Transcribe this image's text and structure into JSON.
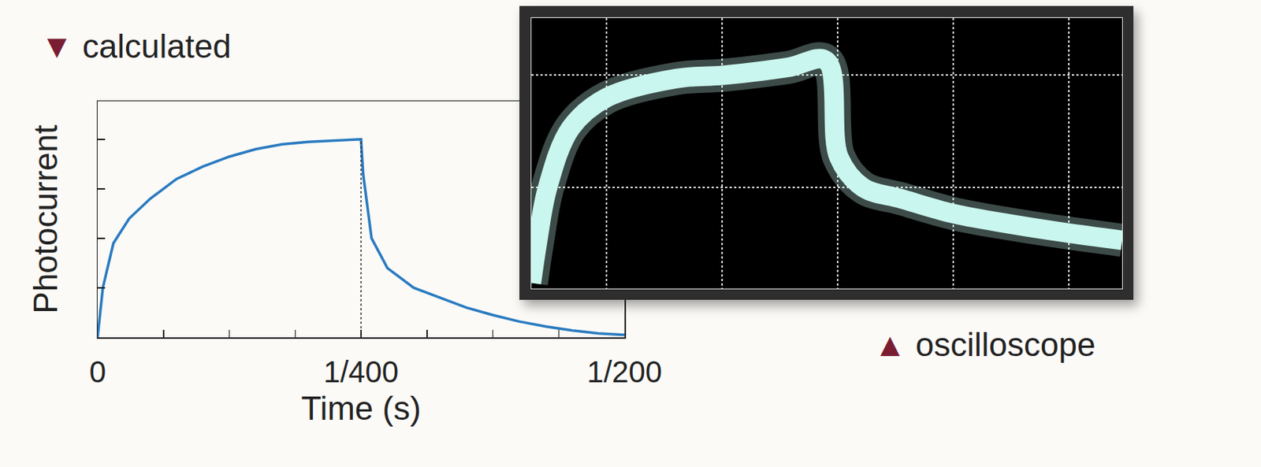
{
  "chart_data": [
    {
      "type": "line",
      "title": "▼ calculated",
      "x_label": "Time (s)",
      "y_label": "Photocurrent",
      "x": [
        0,
        5e-05,
        0.00015,
        0.0003,
        0.0005,
        0.00075,
        0.001,
        0.00125,
        0.0015,
        0.00175,
        0.002,
        0.00225,
        0.0025,
        0.00252,
        0.0026,
        0.00275,
        0.003,
        0.00325,
        0.0035,
        0.00375,
        0.004,
        0.00425,
        0.0045,
        0.00475,
        0.005
      ],
      "values": [
        0,
        1.0,
        1.9,
        2.4,
        2.8,
        3.2,
        3.45,
        3.65,
        3.8,
        3.9,
        3.95,
        3.98,
        4.0,
        3.3,
        2.0,
        1.4,
        1.0,
        0.8,
        0.6,
        0.45,
        0.32,
        0.22,
        0.14,
        0.08,
        0.05
      ],
      "color": "#2a7bc0",
      "xlim": [
        0,
        0.005
      ],
      "xticks": [
        0,
        {
          "value": 0.0025,
          "label": "1/400"
        },
        {
          "value": 0.005,
          "label": "1/200"
        }
      ],
      "ylim": [
        0,
        4.77
      ],
      "yticks": [
        0,
        1,
        2,
        3,
        4
      ],
      "tick_labels": "x",
      "grid": false
    },
    {
      "type": "line",
      "title": "▲ oscilloscope",
      "x": [
        0.35,
        0.4,
        0.49,
        0.69,
        1.0,
        1.6,
        2.01,
        2.57,
        2.9,
        3.01,
        3.22,
        3.55,
        3.99,
        4.52,
        4.96,
        5.46
      ],
      "values": [
        -0.85,
        -0.5,
        0,
        0.53,
        0.8,
        0.97,
        1.0,
        1.07,
        1.13,
        0.27,
        0,
        -0.1,
        -0.23,
        -0.33,
        -0.4,
        -0.47
      ],
      "color": "#c9f7ef",
      "xlim": [
        0.35,
        5.46
      ],
      "xticks": [
        1,
        2,
        3,
        4,
        5
      ],
      "ylim": [
        -0.9,
        1.51
      ],
      "yticks": [
        0,
        1
      ],
      "tick_labels": false,
      "grid": true
    }
  ]
}
